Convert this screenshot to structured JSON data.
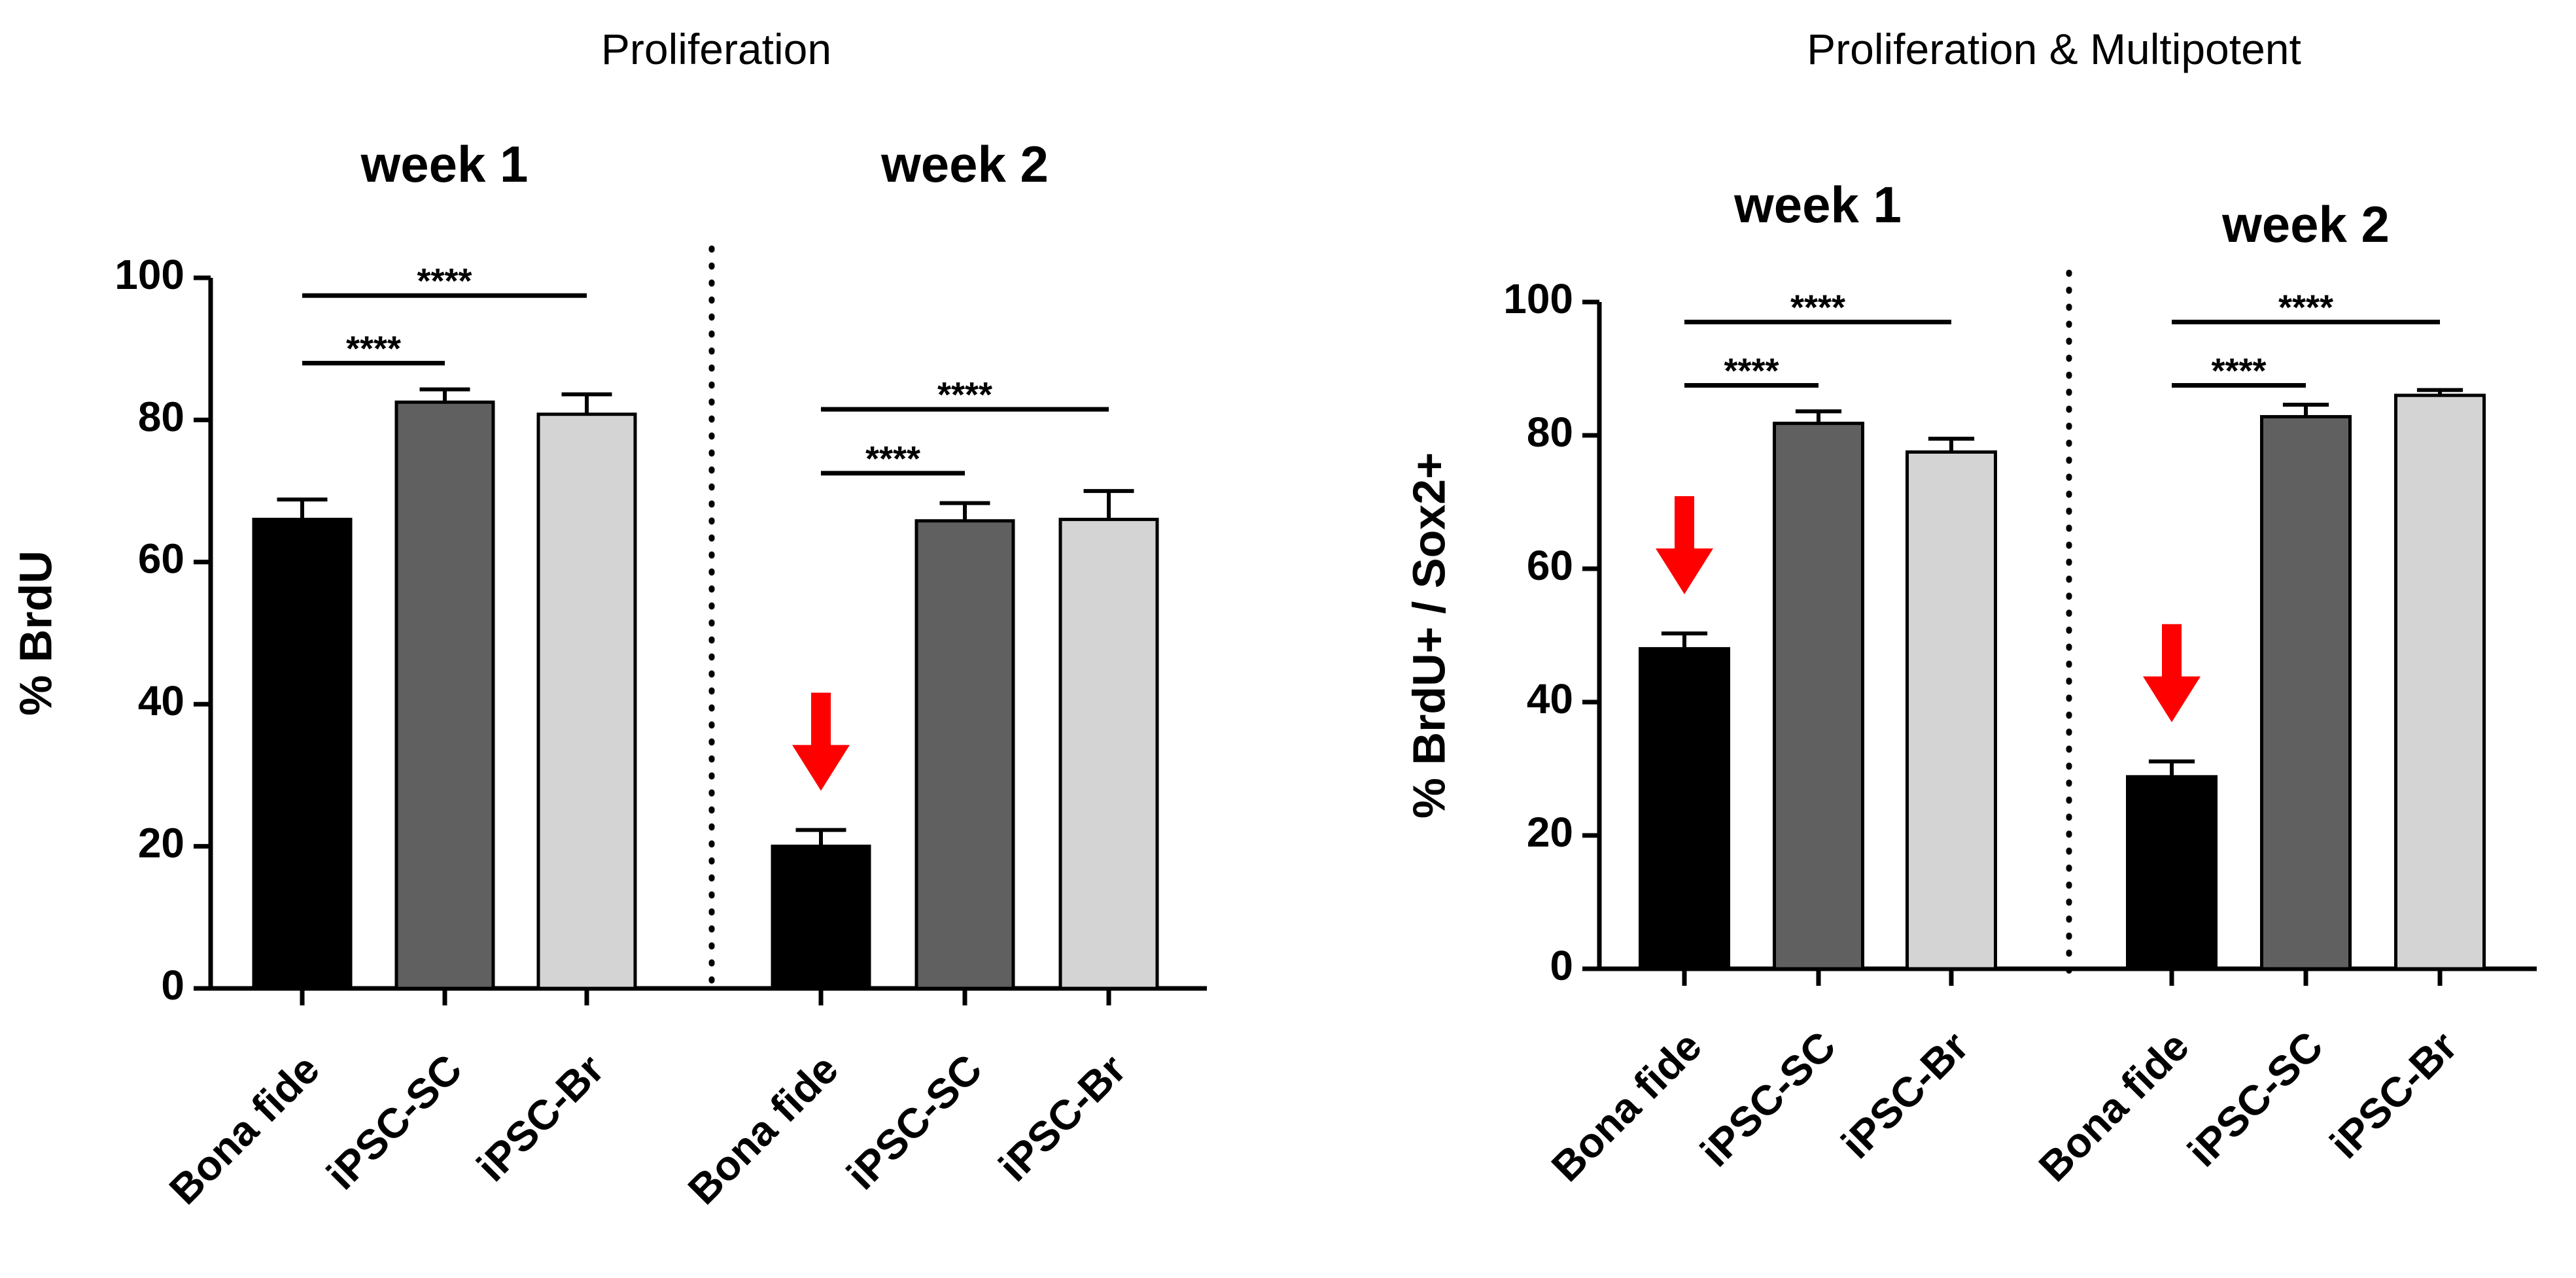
{
  "chart_data": [
    {
      "type": "bar",
      "title": "Proliferation",
      "ylabel": "% BrdU",
      "ylim": [
        0,
        100
      ],
      "yticks": [
        0,
        20,
        40,
        60,
        80,
        100
      ],
      "categories": [
        "Bona fide",
        "iPSC-SC",
        "iPSC-Br"
      ],
      "colors": [
        "#000000",
        "#606060",
        "#d4d4d4"
      ],
      "groups": [
        {
          "name": "week 1",
          "values": [
            66,
            82.5,
            80.8
          ],
          "errors": [
            2.8,
            1.8,
            2.8
          ],
          "significance": [
            {
              "from": 0,
              "to": 1,
              "label": "****",
              "y": 88
            },
            {
              "from": 0,
              "to": 2,
              "label": "****",
              "y": 97.5
            }
          ],
          "arrow": null
        },
        {
          "name": "week 2",
          "values": [
            20,
            65.8,
            66
          ],
          "errors": [
            2.3,
            2.5,
            4
          ],
          "significance": [
            {
              "from": 0,
              "to": 1,
              "label": "****",
              "y": 72.5
            },
            {
              "from": 0,
              "to": 2,
              "label": "****",
              "y": 81.5
            }
          ],
          "arrow": 0
        }
      ]
    },
    {
      "type": "bar",
      "title": "Proliferation & Multipotent",
      "ylabel": "% BrdU+ / Sox2+",
      "ylim": [
        0,
        100
      ],
      "yticks": [
        0,
        20,
        40,
        60,
        80,
        100
      ],
      "categories": [
        "Bona fide",
        "iPSC-SC",
        "iPSC-Br"
      ],
      "colors": [
        "#000000",
        "#606060",
        "#d4d4d4"
      ],
      "groups": [
        {
          "name": "week 1",
          "values": [
            48,
            81.8,
            77.5
          ],
          "errors": [
            2.3,
            1.8,
            2
          ],
          "significance": [
            {
              "from": 0,
              "to": 1,
              "label": "****",
              "y": 87.5
            },
            {
              "from": 0,
              "to": 2,
              "label": "****",
              "y": 97
            }
          ],
          "arrow": 0
        },
        {
          "name": "week 2",
          "values": [
            28.8,
            82.8,
            86
          ],
          "errors": [
            2.3,
            1.8,
            0.8
          ],
          "significance": [
            {
              "from": 0,
              "to": 1,
              "label": "****",
              "y": 87.5
            },
            {
              "from": 0,
              "to": 2,
              "label": "****",
              "y": 97
            }
          ],
          "arrow": 0
        }
      ]
    }
  ]
}
